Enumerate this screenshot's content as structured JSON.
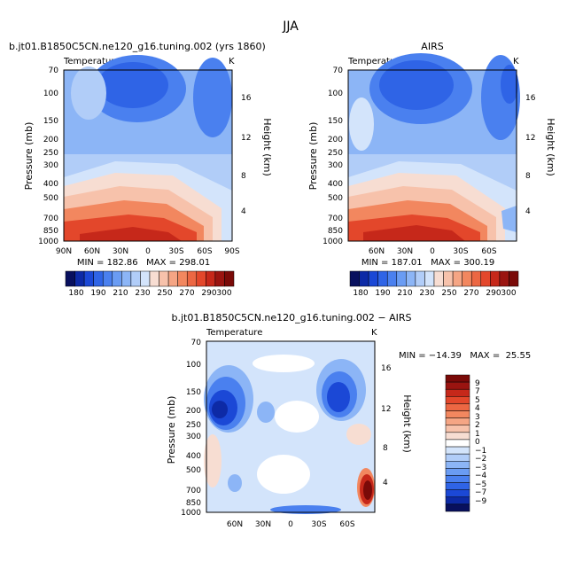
{
  "page": {
    "title": "JJA"
  },
  "colors": {
    "temp_scale": [
      "#08105e",
      "#0d2aa6",
      "#1b48d6",
      "#2f64e6",
      "#4a80ef",
      "#6a9cf3",
      "#8cb5f6",
      "#b1cdf8",
      "#d3e4fb",
      "#f7ddd2",
      "#f7c2ab",
      "#f5a584",
      "#f2875f",
      "#ec6743",
      "#e3472b",
      "#c6281a",
      "#9a1410",
      "#7a0a08"
    ],
    "diff_scale": [
      "#08105e",
      "#0d2aa6",
      "#1b48d6",
      "#2f64e6",
      "#4a80ef",
      "#6a9cf3",
      "#8cb5f6",
      "#b1cdf8",
      "#d3e4fb",
      "#ffffff",
      "#f7ddd2",
      "#f7c2ab",
      "#f5a584",
      "#f2875f",
      "#ec6743",
      "#e3472b",
      "#c6281a",
      "#9a1410",
      "#7a0a08"
    ]
  },
  "chart_data": [
    {
      "type": "heatmap",
      "title": "b.jt01.B1850C5CN.ne120_g16.tuning.002 (yrs 1860)",
      "variable": "Temperature",
      "units": "K",
      "ylabel": "Pressure (mb)",
      "y2label": "Height (km)",
      "xticks": [
        "90N",
        "60N",
        "30N",
        "0",
        "30S",
        "60S",
        "90S"
      ],
      "yticks": [
        "70",
        "100",
        "150",
        "200",
        "250",
        "300",
        "400",
        "500",
        "700",
        "850",
        "1000"
      ],
      "y2ticks": [
        "16",
        "12",
        "8",
        "4"
      ],
      "stats": "MIN = 182.86   MAX = 298.01",
      "colorbar_labels": [
        "180",
        "190",
        "210",
        "230",
        "250",
        "270",
        "290",
        "300"
      ]
    },
    {
      "type": "heatmap",
      "title": "AIRS",
      "variable": "Temperature",
      "units": "K",
      "ylabel": "Pressure (mb)",
      "y2label": "Height (km)",
      "xticks": [
        "60N",
        "30N",
        "0",
        "30S",
        "60S"
      ],
      "yticks": [
        "70",
        "100",
        "150",
        "200",
        "250",
        "300",
        "400",
        "500",
        "700",
        "850",
        "1000"
      ],
      "y2ticks": [
        "16",
        "12",
        "8",
        "4"
      ],
      "stats": "MIN = 187.01   MAX = 300.19",
      "colorbar_labels": [
        "180",
        "190",
        "210",
        "230",
        "250",
        "270",
        "290",
        "300"
      ]
    },
    {
      "type": "heatmap",
      "title": "b.jt01.B1850C5CN.ne120_g16.tuning.002 − AIRS",
      "variable": "Temperature",
      "units": "K",
      "ylabel": "Pressure (mb)",
      "y2label": "Height (km)",
      "xticks": [
        "60N",
        "30N",
        "0",
        "30S",
        "60S"
      ],
      "yticks": [
        "70",
        "100",
        "150",
        "200",
        "250",
        "300",
        "400",
        "500",
        "700",
        "850",
        "1000"
      ],
      "y2ticks": [
        "16",
        "12",
        "8",
        "4"
      ],
      "stats": "MIN = −14.39   MAX =  25.55",
      "colorbar_labels": [
        "9",
        "7",
        "5",
        "4",
        "3",
        "2",
        "1",
        "0",
        "−1",
        "−2",
        "−3",
        "−4",
        "−5",
        "−7",
        "−9"
      ]
    }
  ]
}
